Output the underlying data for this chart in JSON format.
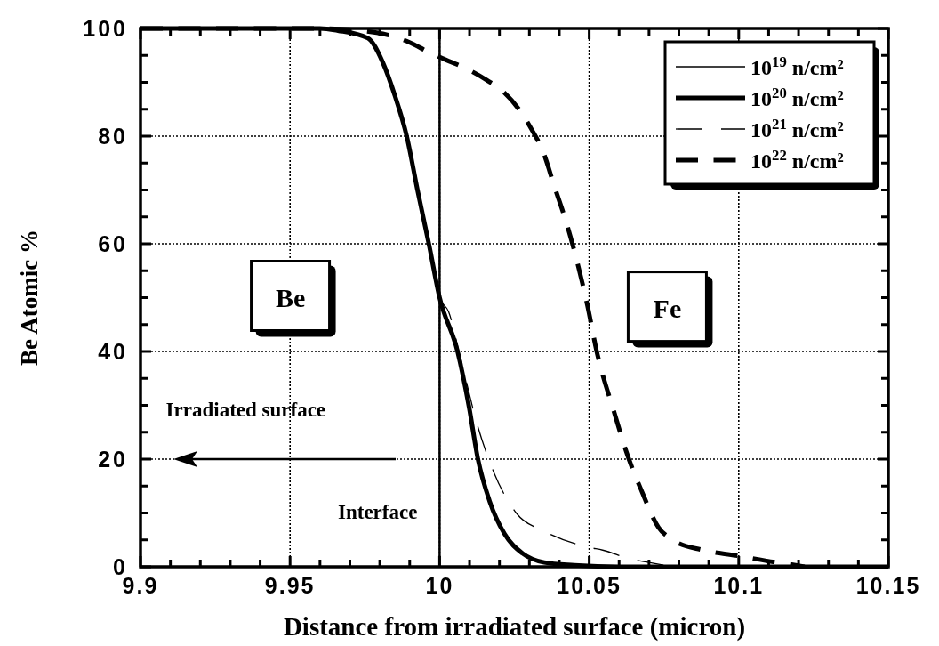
{
  "chart_data": {
    "type": "line",
    "xlabel": "Distance from irradiated surface (micron)",
    "ylabel": "Be Atomic %",
    "xlim": [
      9.9,
      10.15
    ],
    "ylim": [
      0,
      100
    ],
    "xticks": [
      9.9,
      {
        "value": 9.91,
        "label": null
      },
      {
        "value": 9.92,
        "label": null
      },
      {
        "value": 9.93,
        "label": null
      },
      {
        "value": 9.94,
        "label": null
      },
      9.95,
      {
        "value": 9.96,
        "label": null
      },
      {
        "value": 9.97,
        "label": null
      },
      {
        "value": 9.98,
        "label": null
      },
      {
        "value": 9.99,
        "label": null
      },
      10,
      {
        "value": 10.01,
        "label": null
      },
      {
        "value": 10.02,
        "label": null
      },
      {
        "value": 10.03,
        "label": null
      },
      {
        "value": 10.04,
        "label": null
      },
      10.05,
      {
        "value": 10.06,
        "label": null
      },
      {
        "value": 10.07,
        "label": null
      },
      {
        "value": 10.08,
        "label": null
      },
      {
        "value": 10.09,
        "label": null
      },
      10.1,
      {
        "value": 10.11,
        "label": null
      },
      {
        "value": 10.12,
        "label": null
      },
      {
        "value": 10.13,
        "label": null
      },
      {
        "value": 10.14,
        "label": null
      },
      10.15
    ],
    "yticks": [
      0,
      {
        "value": 5,
        "label": null
      },
      {
        "value": 10,
        "label": null
      },
      {
        "value": 15,
        "label": null
      },
      20,
      {
        "value": 25,
        "label": null
      },
      {
        "value": 30,
        "label": null
      },
      {
        "value": 35,
        "label": null
      },
      40,
      {
        "value": 45,
        "label": null
      },
      {
        "value": 50,
        "label": null
      },
      {
        "value": 55,
        "label": null
      },
      60,
      {
        "value": 65,
        "label": null
      },
      {
        "value": 70,
        "label": null
      },
      {
        "value": 75,
        "label": null
      },
      80,
      {
        "value": 85,
        "label": null
      },
      {
        "value": 90,
        "label": null
      },
      {
        "value": 95,
        "label": null
      },
      100
    ],
    "grid": true,
    "legend": "top right",
    "ref_lines": [
      {
        "axis": "x",
        "value": 10,
        "label": "Interface",
        "color": "#000000",
        "line_style": "solid"
      }
    ],
    "annotations": [
      "Be",
      "Fe",
      "Irradiated surface"
    ],
    "series": [
      {
        "name": "10$^{19}$ n/cm²",
        "color": "#000000",
        "line_style": "solid"
      },
      {
        "name": "10$^{20}$ n/cm²",
        "color": "#000000",
        "line_style": "solid",
        "x": [
          9.9,
          9.96,
          9.966,
          9.976,
          9.981,
          9.985,
          9.989,
          9.9926,
          9.9964,
          10.0,
          10.006,
          10.0098,
          10.0128,
          10.0167,
          10.0217,
          10.0277,
          10.035,
          10.045,
          10.06,
          10.15
        ],
        "values": [
          100,
          100,
          99.6,
          98.2,
          93.7,
          87.6,
          80,
          70,
          60,
          50,
          40,
          29.8,
          20,
          12.2,
          6.1,
          2.5,
          0.8,
          0.3,
          0,
          0
        ]
      },
      {
        "name": "10$^{21}$ n/cm²",
        "color": "#000000",
        "line_style": "dashed",
        "x": [
          9.9,
          9.96,
          9.966,
          9.976,
          9.981,
          9.985,
          9.989,
          9.9926,
          9.9964,
          10.0,
          10.003,
          10.007,
          10.0128,
          10.018,
          10.0256,
          10.035,
          10.05,
          10.0545,
          10.0634,
          10.072,
          10.08,
          10.15
        ],
        "values": [
          100,
          100,
          99.6,
          98.2,
          93.7,
          87.6,
          80,
          70,
          60,
          50,
          47.4,
          38.7,
          26,
          17.7,
          10,
          6.6,
          3.6,
          3.1,
          1.5,
          0.6,
          0,
          0
        ]
      },
      {
        "name": "10$^{22}$ n/cm²",
        "color": "#000000",
        "line_style": "dashed",
        "x": [
          9.9,
          9.96,
          9.979,
          9.99,
          9.996,
          10.002,
          10.0087,
          10.0158,
          10.021,
          10.0265,
          10.0307,
          10.0345,
          10.0384,
          10.0426,
          10.0464,
          10.0494,
          10.0524,
          10.0583,
          10.0634,
          10.0673,
          10.0732,
          10.078,
          10.088,
          10.099,
          10.1128,
          10.119,
          10.122
        ],
        "values": [
          100,
          100,
          99.2,
          97.4,
          95.7,
          94.2,
          92.6,
          90.4,
          88.4,
          85,
          81.3,
          77.2,
          70.6,
          63.5,
          55.7,
          48.6,
          40.3,
          28.8,
          19.8,
          14.4,
          7.3,
          5,
          3.1,
          2.1,
          0.8,
          0.3,
          0
        ]
      }
    ]
  }
}
